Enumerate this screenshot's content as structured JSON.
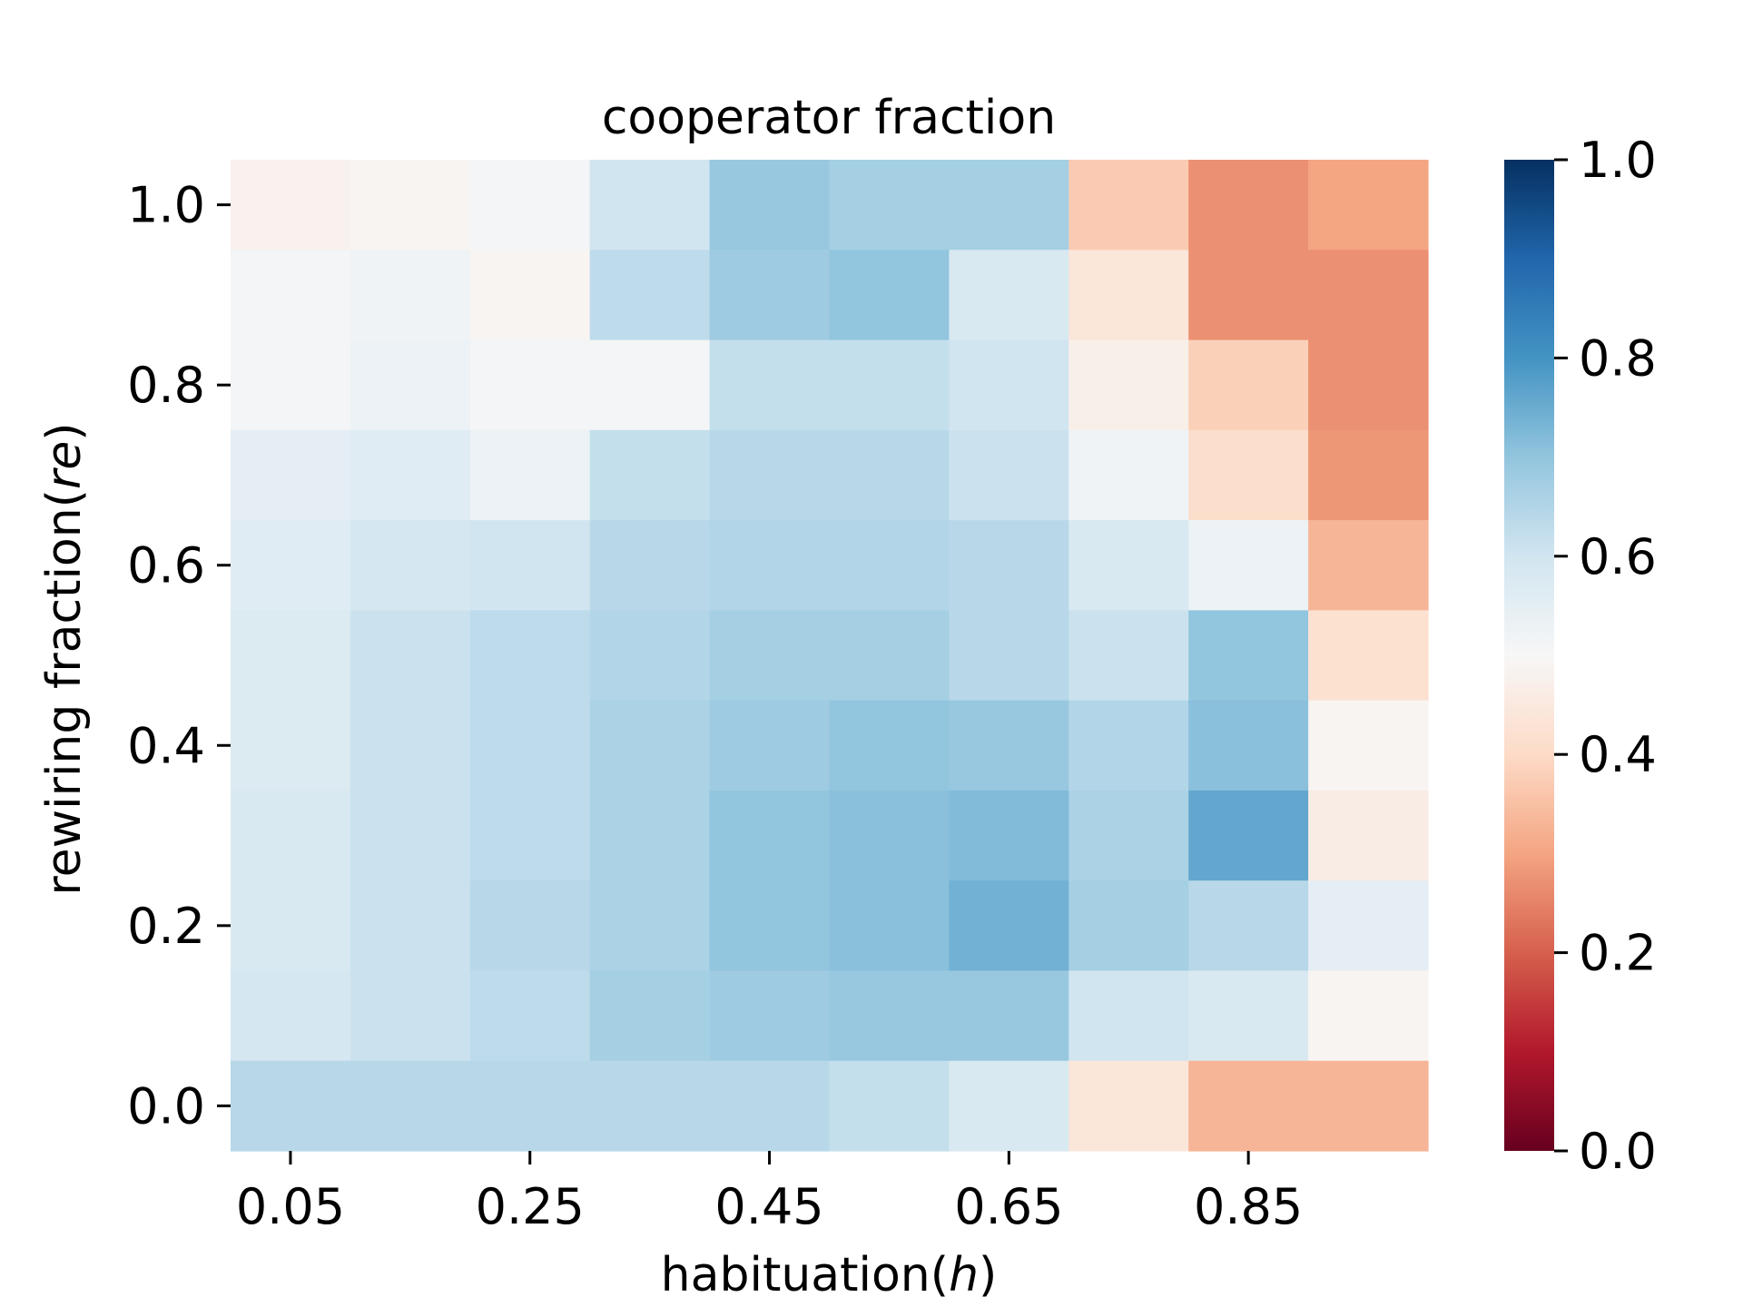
{
  "chart_data": {
    "type": "heatmap",
    "title": "cooperator fraction",
    "xlabel_main": "habituation(",
    "xlabel_var": "h",
    "xlabel_close": ")",
    "ylabel_main": "rewiring fraction(",
    "ylabel_var": "re",
    "ylabel_close": ")",
    "x": [
      0.05,
      0.15,
      0.25,
      0.35,
      0.45,
      0.55,
      0.65,
      0.75,
      0.85,
      0.95
    ],
    "y": [
      1.0,
      0.9,
      0.8,
      0.7,
      0.6,
      0.5,
      0.4,
      0.3,
      0.2,
      0.1,
      0.0
    ],
    "x_tick_labels": [
      "0.05",
      "0.25",
      "0.45",
      "0.65",
      "0.85"
    ],
    "y_tick_labels": [
      "1.0",
      "0.8",
      "0.6",
      "0.4",
      "0.2",
      "0.0"
    ],
    "values": [
      [
        0.48,
        0.49,
        0.51,
        0.6,
        0.69,
        0.67,
        0.67,
        0.37,
        0.27,
        0.3
      ],
      [
        0.51,
        0.52,
        0.49,
        0.63,
        0.68,
        0.7,
        0.58,
        0.44,
        0.27,
        0.27
      ],
      [
        0.51,
        0.53,
        0.51,
        0.51,
        0.62,
        0.62,
        0.6,
        0.47,
        0.38,
        0.27
      ],
      [
        0.55,
        0.56,
        0.53,
        0.62,
        0.64,
        0.64,
        0.61,
        0.52,
        0.41,
        0.28
      ],
      [
        0.56,
        0.59,
        0.6,
        0.64,
        0.65,
        0.65,
        0.64,
        0.58,
        0.53,
        0.33
      ],
      [
        0.57,
        0.61,
        0.63,
        0.65,
        0.67,
        0.67,
        0.64,
        0.61,
        0.7,
        0.42
      ],
      [
        0.57,
        0.61,
        0.63,
        0.66,
        0.68,
        0.7,
        0.69,
        0.65,
        0.71,
        0.49
      ],
      [
        0.58,
        0.61,
        0.63,
        0.66,
        0.7,
        0.71,
        0.72,
        0.66,
        0.76,
        0.46
      ],
      [
        0.58,
        0.61,
        0.64,
        0.66,
        0.7,
        0.71,
        0.74,
        0.67,
        0.64,
        0.55
      ],
      [
        0.59,
        0.61,
        0.63,
        0.67,
        0.68,
        0.69,
        0.69,
        0.6,
        0.58,
        0.49
      ],
      [
        0.64,
        0.64,
        0.64,
        0.64,
        0.64,
        0.62,
        0.58,
        0.44,
        0.33,
        0.33
      ]
    ],
    "colormap": "RdBu",
    "colorbar": {
      "min": 0.0,
      "max": 1.0,
      "tick_values": [
        1.0,
        0.8,
        0.6,
        0.4,
        0.2,
        0.0
      ],
      "tick_labels": [
        "1.0",
        "0.8",
        "0.6",
        "0.4",
        "0.2",
        "0.0"
      ],
      "stops": [
        "#67001f",
        "#b2182b",
        "#d6604d",
        "#f4a582",
        "#fddbc7",
        "#f7f7f7",
        "#d1e5f0",
        "#92c5de",
        "#4393c3",
        "#2166ac",
        "#053061"
      ]
    },
    "grid": false
  }
}
